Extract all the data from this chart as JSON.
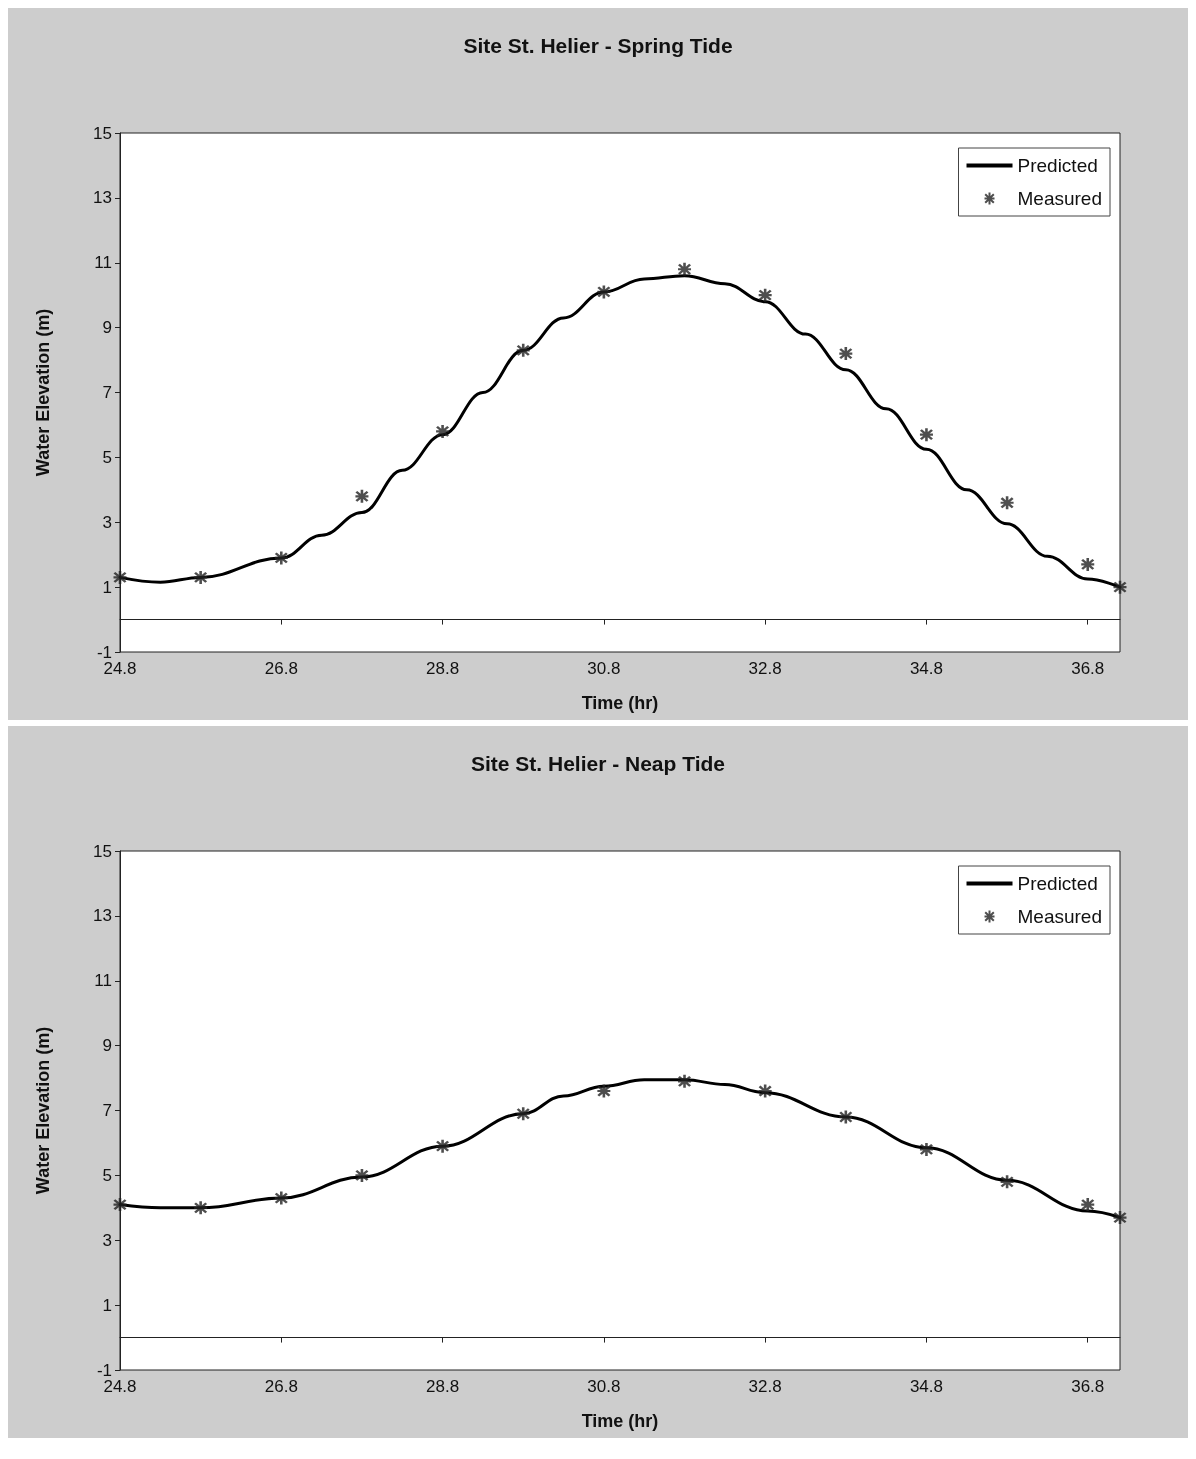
{
  "chart_data": [
    {
      "type": "line",
      "title": "Site St. Helier - Spring Tide",
      "xlabel": "Time (hr)",
      "ylabel": "Water Elevation (m)",
      "xlim": [
        24.8,
        37.2
      ],
      "ylim": [
        -1,
        15
      ],
      "xticks": [
        24.8,
        26.8,
        28.8,
        30.8,
        32.8,
        34.8,
        36.8
      ],
      "yticks": [
        -1,
        1,
        3,
        5,
        7,
        9,
        11,
        13,
        15
      ],
      "grid": false,
      "legend": "top right",
      "series": [
        {
          "name": "Predicted",
          "type": "line",
          "color": "#000000",
          "marker": "none",
          "x": [
            24.8,
            25.3,
            25.8,
            26.8,
            27.3,
            27.8,
            28.3,
            28.8,
            29.3,
            29.8,
            30.3,
            30.8,
            31.3,
            31.8,
            32.3,
            32.8,
            33.3,
            33.8,
            34.3,
            34.8,
            35.3,
            35.8,
            36.3,
            36.8,
            37.2
          ],
          "values": [
            1.3,
            1.15,
            1.3,
            1.9,
            2.6,
            3.3,
            4.6,
            5.7,
            7.0,
            8.3,
            9.3,
            10.1,
            10.5,
            10.6,
            10.35,
            9.8,
            8.8,
            7.7,
            6.5,
            5.25,
            4.0,
            2.95,
            1.95,
            1.25,
            1.0
          ]
        },
        {
          "name": "Measured",
          "type": "scatter",
          "color": "#222222",
          "marker": "star",
          "x": [
            24.8,
            25.8,
            26.8,
            27.8,
            28.8,
            29.8,
            30.8,
            31.8,
            32.8,
            33.8,
            34.8,
            35.8,
            36.8,
            37.2
          ],
          "values": [
            1.3,
            1.3,
            1.9,
            3.8,
            5.8,
            8.3,
            10.1,
            10.8,
            10.0,
            8.2,
            5.7,
            3.6,
            1.7,
            1.0
          ]
        }
      ]
    },
    {
      "type": "line",
      "title": "Site St. Helier - Neap Tide",
      "xlabel": "Time (hr)",
      "ylabel": "Water Elevation (m)",
      "xlim": [
        24.8,
        37.2
      ],
      "ylim": [
        -1,
        15
      ],
      "xticks": [
        24.8,
        26.8,
        28.8,
        30.8,
        32.8,
        34.8,
        36.8
      ],
      "yticks": [
        -1,
        1,
        3,
        5,
        7,
        9,
        11,
        13,
        15
      ],
      "grid": false,
      "legend": "top right",
      "series": [
        {
          "name": "Predicted",
          "type": "line",
          "color": "#000000",
          "marker": "none",
          "x": [
            24.8,
            25.3,
            25.8,
            26.8,
            27.8,
            28.8,
            29.8,
            30.3,
            30.8,
            31.3,
            31.8,
            32.3,
            32.8,
            33.8,
            34.8,
            35.8,
            36.8,
            37.2
          ],
          "values": [
            4.1,
            4.0,
            4.0,
            4.3,
            4.95,
            5.9,
            6.9,
            7.45,
            7.75,
            7.95,
            7.95,
            7.8,
            7.55,
            6.8,
            5.85,
            4.85,
            3.9,
            3.7
          ]
        },
        {
          "name": "Measured",
          "type": "scatter",
          "color": "#222222",
          "marker": "star",
          "x": [
            24.8,
            25.8,
            26.8,
            27.8,
            28.8,
            29.8,
            30.8,
            31.8,
            32.8,
            33.8,
            34.8,
            35.8,
            36.8,
            37.2
          ],
          "values": [
            4.1,
            4.0,
            4.3,
            5.0,
            5.9,
            6.9,
            7.6,
            7.9,
            7.6,
            6.8,
            5.8,
            4.8,
            4.1,
            3.7
          ]
        }
      ]
    }
  ]
}
